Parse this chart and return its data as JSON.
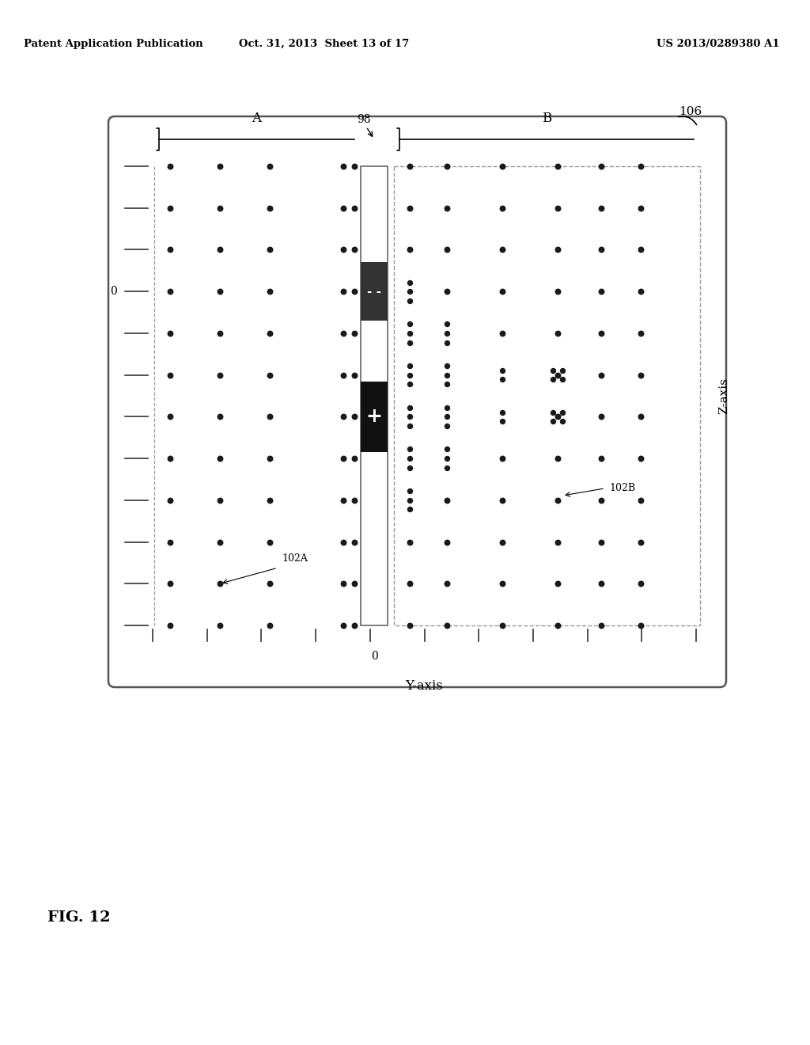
{
  "header_left": "Patent Application Publication",
  "header_mid": "Oct. 31, 2013  Sheet 13 of 17",
  "header_right": "US 2013/0289380 A1",
  "fig_label": "FIG. 12",
  "label_106": "106",
  "label_98": "98",
  "label_A": "A",
  "label_B": "B",
  "label_102A": "102A",
  "label_102B": "102B",
  "label_0_z": "0",
  "label_0_y": "0",
  "label_zaxis": "Z-axis",
  "label_yaxis": "Y-axis",
  "bg_color": "#ffffff",
  "dot_color": "#1a1a1a"
}
